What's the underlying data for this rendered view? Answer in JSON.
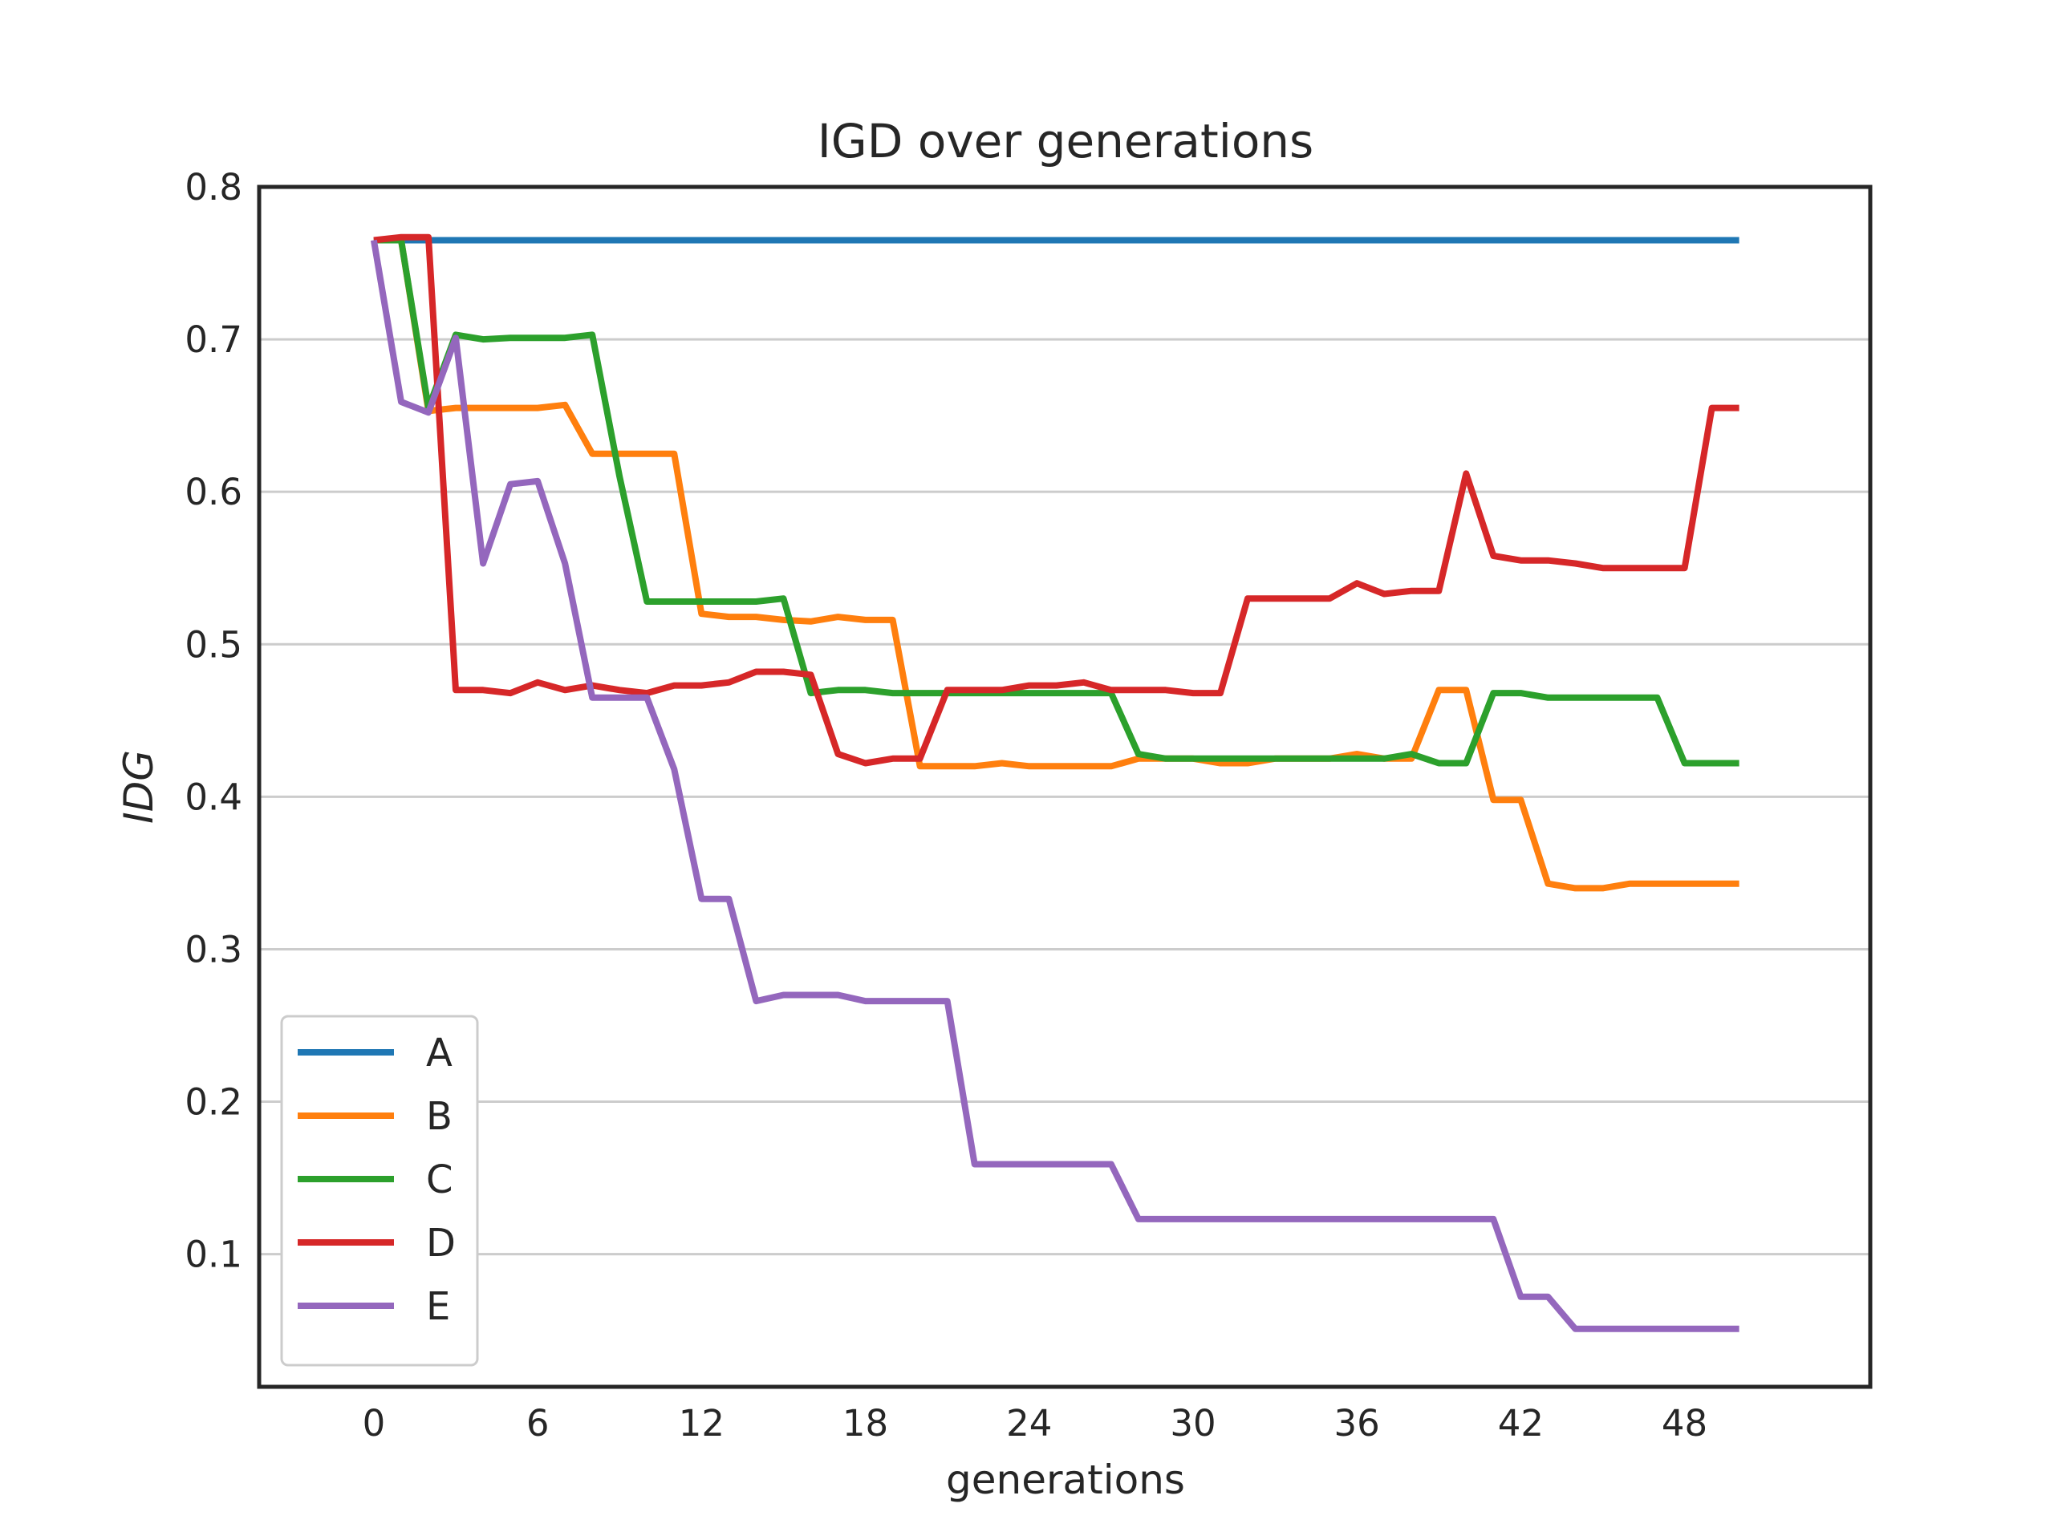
{
  "chart_data": {
    "type": "line",
    "title": "IGD over generations",
    "xlabel": "generations",
    "ylabel": "IDG",
    "xlim": [
      -4.2,
      54.8
    ],
    "ylim": [
      0.013,
      0.8
    ],
    "xticks": [
      0,
      6,
      12,
      18,
      24,
      30,
      36,
      42,
      48
    ],
    "yticks": [
      0.1,
      0.2,
      0.3,
      0.4,
      0.5,
      0.6,
      0.7,
      0.8
    ],
    "ytick_labels": [
      "0.1",
      "0.2",
      "0.3",
      "0.4",
      "0.5",
      "0.6",
      "0.7",
      "0.8"
    ],
    "grid": "horizontal",
    "legend_position": "lower-left",
    "x": [
      0,
      1,
      2,
      3,
      4,
      5,
      6,
      7,
      8,
      9,
      10,
      11,
      12,
      13,
      14,
      15,
      16,
      17,
      18,
      19,
      20,
      21,
      22,
      23,
      24,
      25,
      26,
      27,
      28,
      29,
      30,
      31,
      32,
      33,
      34,
      35,
      36,
      37,
      38,
      39,
      40,
      41,
      42,
      43,
      44,
      45,
      46,
      47,
      48,
      49,
      50
    ],
    "series": [
      {
        "name": "A",
        "color": "#1f77b4",
        "values": [
          0.765,
          0.765,
          0.765,
          0.765,
          0.765,
          0.765,
          0.765,
          0.765,
          0.765,
          0.765,
          0.765,
          0.765,
          0.765,
          0.765,
          0.765,
          0.765,
          0.765,
          0.765,
          0.765,
          0.765,
          0.765,
          0.765,
          0.765,
          0.765,
          0.765,
          0.765,
          0.765,
          0.765,
          0.765,
          0.765,
          0.765,
          0.765,
          0.765,
          0.765,
          0.765,
          0.765,
          0.765,
          0.765,
          0.765,
          0.765,
          0.765,
          0.765,
          0.765,
          0.765,
          0.765,
          0.765,
          0.765,
          0.765,
          0.765,
          0.765,
          0.765
        ]
      },
      {
        "name": "B",
        "color": "#ff7f0e",
        "values": [
          0.765,
          0.765,
          0.653,
          0.655,
          0.655,
          0.655,
          0.655,
          0.657,
          0.625,
          0.625,
          0.625,
          0.625,
          0.52,
          0.518,
          0.518,
          0.516,
          0.515,
          0.518,
          0.516,
          0.516,
          0.42,
          0.42,
          0.42,
          0.422,
          0.42,
          0.42,
          0.42,
          0.42,
          0.425,
          0.425,
          0.425,
          0.422,
          0.422,
          0.425,
          0.425,
          0.425,
          0.428,
          0.425,
          0.425,
          0.47,
          0.47,
          0.398,
          0.398,
          0.343,
          0.34,
          0.34,
          0.343,
          0.343,
          0.343,
          0.343,
          0.343
        ]
      },
      {
        "name": "C",
        "color": "#2ca02c",
        "values": [
          0.765,
          0.765,
          0.655,
          0.703,
          0.7,
          0.701,
          0.701,
          0.701,
          0.703,
          0.61,
          0.528,
          0.528,
          0.528,
          0.528,
          0.528,
          0.53,
          0.468,
          0.47,
          0.47,
          0.468,
          0.468,
          0.468,
          0.468,
          0.468,
          0.468,
          0.468,
          0.468,
          0.468,
          0.428,
          0.425,
          0.425,
          0.425,
          0.425,
          0.425,
          0.425,
          0.425,
          0.425,
          0.425,
          0.428,
          0.422,
          0.422,
          0.468,
          0.468,
          0.465,
          0.465,
          0.465,
          0.465,
          0.465,
          0.422,
          0.422,
          0.422
        ]
      },
      {
        "name": "D",
        "color": "#d62728",
        "values": [
          0.765,
          0.767,
          0.767,
          0.47,
          0.47,
          0.468,
          0.475,
          0.47,
          0.473,
          0.47,
          0.468,
          0.473,
          0.473,
          0.475,
          0.482,
          0.482,
          0.48,
          0.428,
          0.422,
          0.425,
          0.425,
          0.47,
          0.47,
          0.47,
          0.473,
          0.473,
          0.475,
          0.47,
          0.47,
          0.47,
          0.468,
          0.468,
          0.53,
          0.53,
          0.53,
          0.53,
          0.54,
          0.533,
          0.535,
          0.535,
          0.612,
          0.558,
          0.555,
          0.555,
          0.553,
          0.55,
          0.55,
          0.55,
          0.55,
          0.655,
          0.655
        ]
      },
      {
        "name": "E",
        "color": "#9467bd",
        "values": [
          0.765,
          0.659,
          0.652,
          0.701,
          0.553,
          0.605,
          0.607,
          0.553,
          0.465,
          0.465,
          0.465,
          0.418,
          0.333,
          0.333,
          0.266,
          0.27,
          0.27,
          0.27,
          0.266,
          0.266,
          0.266,
          0.266,
          0.159,
          0.159,
          0.159,
          0.159,
          0.159,
          0.159,
          0.123,
          0.123,
          0.123,
          0.123,
          0.123,
          0.123,
          0.123,
          0.123,
          0.123,
          0.123,
          0.123,
          0.123,
          0.123,
          0.123,
          0.072,
          0.072,
          0.051,
          0.051,
          0.051,
          0.051,
          0.051,
          0.051,
          0.051
        ]
      }
    ]
  }
}
